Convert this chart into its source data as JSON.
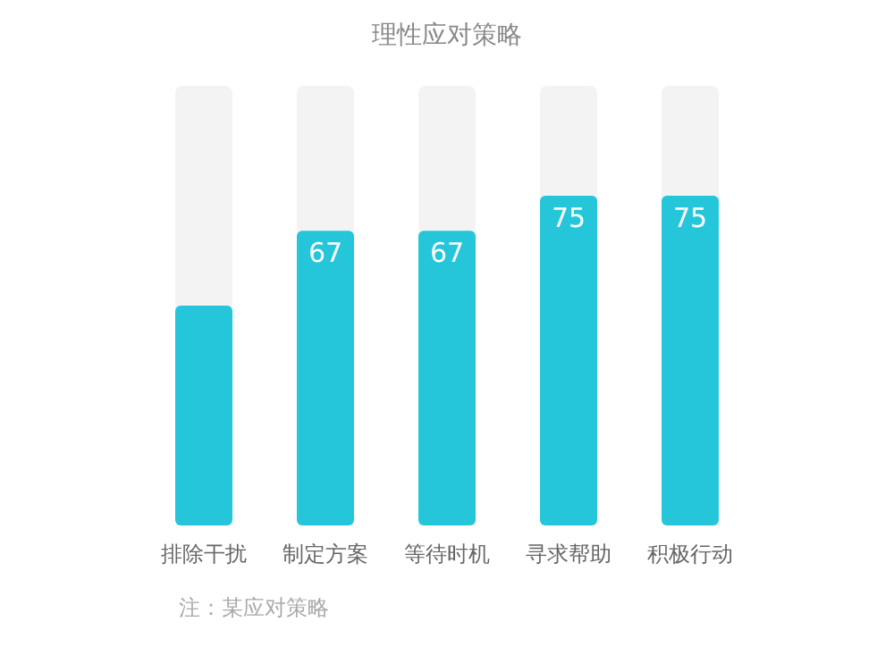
{
  "chart_data": {
    "type": "bar",
    "title": "理性应对策略",
    "categories": [
      "排除干扰",
      "制定方案",
      "等待时机",
      "寻求帮助",
      "积极行动"
    ],
    "values": [
      50,
      67,
      67,
      75,
      75
    ],
    "value_labels": [
      null,
      "67",
      "67",
      "75",
      "75"
    ],
    "color": "#26c6da",
    "ylim": [
      0,
      100
    ],
    "tick_labels": "x",
    "annotations": [
      "注：某应对策略"
    ]
  }
}
